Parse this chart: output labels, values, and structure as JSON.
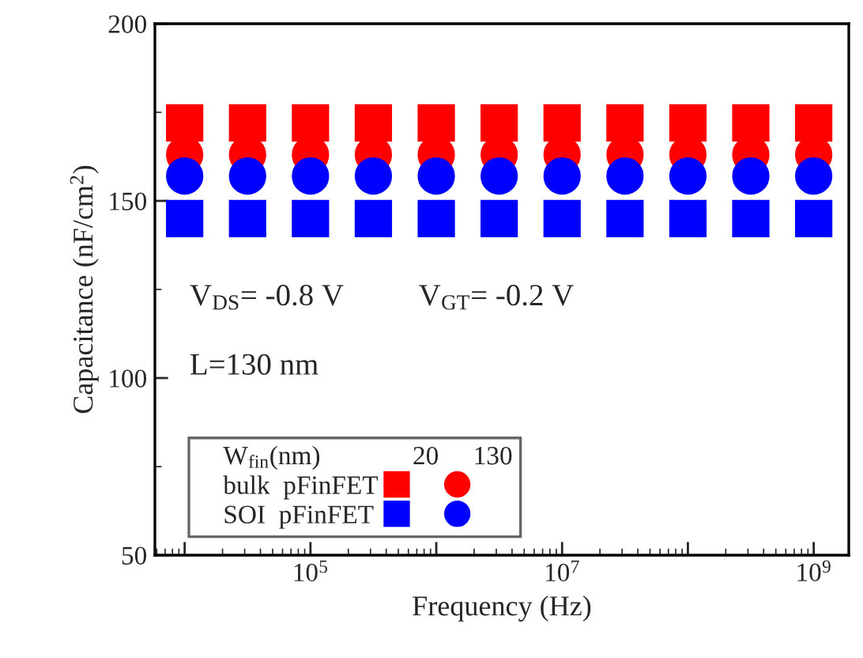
{
  "chart_data": {
    "type": "scatter",
    "xlabel": "Frequency (Hz)",
    "ylabel": "Capacitance (nF/cm$^{2}$)",
    "x": [
      10000,
      31623,
      100000,
      316228,
      1000000,
      3162278,
      10000000,
      31622777,
      100000000,
      316227766,
      1000000000
    ],
    "series": [
      {
        "name": "bulk  pFinFET",
        "color": "#ff0000",
        "marker": "square",
        "values": [
          172,
          172,
          172,
          172,
          172,
          172,
          172,
          172,
          172,
          172,
          172
        ]
      },
      {
        "color": "#ff0000",
        "marker": "circle",
        "values": [
          163,
          163,
          163,
          163,
          163,
          163,
          163,
          163,
          163,
          163,
          163
        ]
      },
      {
        "name": "SOI  pFinFET",
        "color": "#0000ff",
        "marker": "square",
        "values": [
          145,
          145,
          145,
          145,
          145,
          145,
          145,
          145,
          145,
          145,
          145
        ]
      },
      {
        "color": "#0000ff",
        "marker": "circle",
        "values": [
          157,
          157,
          157,
          157,
          157,
          157,
          157,
          157,
          157,
          157,
          157
        ]
      }
    ],
    "log": "x",
    "xlim": [
      5800,
      1900000000
    ],
    "xticks": [
      {
        "value": 10000,
        "label": null
      },
      {
        "value": 100000,
        "label": "10$^{5}$"
      },
      {
        "value": 1000000,
        "label": null
      },
      {
        "value": 10000000,
        "label": "10$^{7}$"
      },
      {
        "value": 100000000,
        "label": null
      },
      {
        "value": 1000000000,
        "label": "10$^{9}$"
      }
    ],
    "ylim": [
      50,
      200
    ],
    "yticks": [
      50,
      100,
      150,
      200
    ],
    "grid": false,
    "legend": "bottom left",
    "legend_title": "W$_{fin}$(nm)",
    "annotations": [
      "20",
      "130",
      "V$_{DS}$= -0.8 V",
      "V$_{GT}$= -0.2 V",
      "L=130 nm"
    ]
  }
}
